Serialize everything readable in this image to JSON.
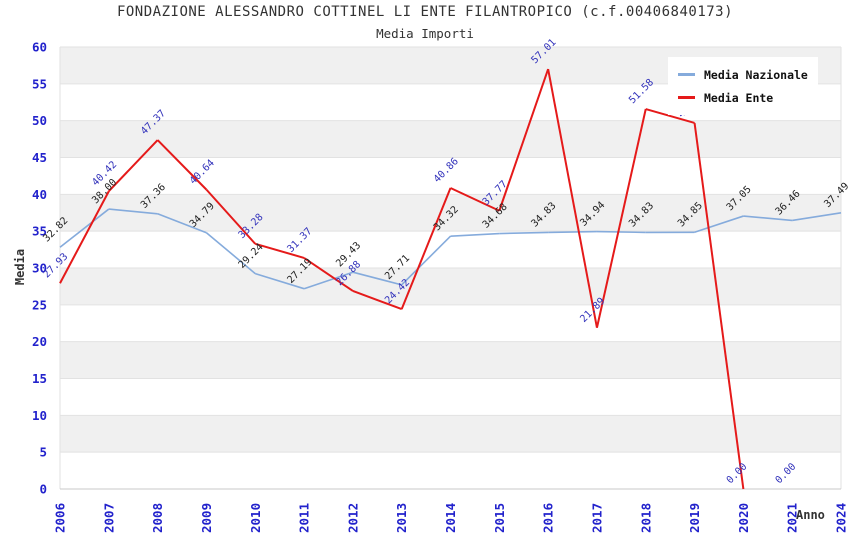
{
  "header": {
    "title": "FONDAZIONE ALESSANDRO COTTINEL LI ENTE FILANTROPICO (c.f.00406840173)",
    "subtitle": "Media Importi"
  },
  "legend": {
    "items": [
      {
        "label": "Media Nazionale",
        "color": "#85abdc"
      },
      {
        "label": "Media Ente",
        "color": "#e51a1a"
      }
    ]
  },
  "axes": {
    "x_title": "Anno",
    "y_title": "Media",
    "y_ticks": [
      0,
      5,
      10,
      15,
      20,
      25,
      30,
      35,
      40,
      45,
      50,
      55,
      60
    ]
  },
  "colors": {
    "tick_label": "#2222cc",
    "band": "#f0f0f0",
    "gridline": "#e2e2e2",
    "axis_border": "#c8c8c8",
    "title_text": "#333333"
  },
  "chart_data": {
    "type": "line",
    "title": "FONDAZIONE ALESSANDRO COTTINEL LI ENTE FILANTROPICO (c.f.00406840173)",
    "subtitle": "Media Importi",
    "xlabel": "Anno",
    "ylabel": "Media",
    "ylim": [
      0,
      60
    ],
    "ytick_step": 5,
    "grid": "horizontal-alternating-bands",
    "legend_position": "top-right",
    "x": [
      "2006",
      "2007",
      "2008",
      "2009",
      "2010",
      "2011",
      "2012",
      "2013",
      "2014",
      "2015",
      "2016",
      "2017",
      "2018",
      "2019",
      "2020",
      "2021",
      "2024"
    ],
    "series": [
      {
        "name": "Media Nazionale",
        "color": "#85abdc",
        "label_color": "#222222",
        "values": [
          32.82,
          38.0,
          37.36,
          34.79,
          29.24,
          27.19,
          29.43,
          27.71,
          34.32,
          34.68,
          34.83,
          34.94,
          34.83,
          34.85,
          37.05,
          36.46,
          37.49
        ]
      },
      {
        "name": "Media Ente",
        "color": "#e51a1a",
        "label_color": "#3333bb",
        "values": [
          27.93,
          40.42,
          47.37,
          40.64,
          33.28,
          31.37,
          26.88,
          24.42,
          40.86,
          37.77,
          57.01,
          21.89,
          51.58,
          49.69,
          0.0,
          0.0,
          null
        ]
      }
    ],
    "point_label_decimals": 2
  }
}
